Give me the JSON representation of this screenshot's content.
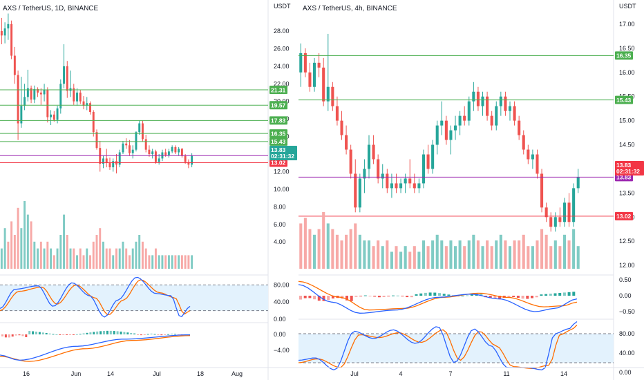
{
  "colors": {
    "up": "#26a69a",
    "down": "#ef5350",
    "up_vol": "#80cbc4",
    "down_vol": "#f7a9a7",
    "level_green": "#4caf50",
    "level_red": "#f23645",
    "last_price": "#9c27b0",
    "osc_fill": "#e3f2fd",
    "line_blue": "#2962ff",
    "line_orange": "#ff6d00",
    "grid": "#f0f3fa"
  },
  "chart_data": [
    {
      "type": "candlestick",
      "title": "AXS / TetherUS, 1D, BINANCE",
      "currency": "USDT",
      "x_ticks": [
        "16",
        "Jun",
        "14",
        "Jul",
        "18",
        "Aug"
      ],
      "y_ticks": [
        "28.00",
        "26.00",
        "24.00",
        "22.00",
        "20.00",
        "18.00",
        "16.00",
        "14.00",
        "12.00",
        "10.00",
        "8.00",
        "6.00",
        "4.00"
      ],
      "ylim": [
        1.5,
        30.2
      ],
      "levels": [
        21.31,
        19.57,
        17.83,
        16.35,
        15.43,
        13.02
      ],
      "level_labels": [
        "21.31",
        "19.57",
        "17.83",
        "16.35",
        "15.43",
        "13.02"
      ],
      "current_price": "13.83",
      "countdown": "02:31:32",
      "candles": [
        [
          28.0,
          29.5,
          26.5,
          27.5
        ],
        [
          27.5,
          29.0,
          26.6,
          28.3
        ],
        [
          28.3,
          30.0,
          27.0,
          28.8
        ],
        [
          28.8,
          29.2,
          24.8,
          25.2
        ],
        [
          25.2,
          26.2,
          22.0,
          23.0
        ],
        [
          23.0,
          23.5,
          15.6,
          17.5
        ],
        [
          17.5,
          22.8,
          17.0,
          19.5
        ],
        [
          19.5,
          22.0,
          19.0,
          20.5
        ],
        [
          20.5,
          23.6,
          20.0,
          21.5
        ],
        [
          21.5,
          21.8,
          19.8,
          20.2
        ],
        [
          20.2,
          21.8,
          19.8,
          21.4
        ],
        [
          21.4,
          21.6,
          20.5,
          21.0
        ],
        [
          21.0,
          21.5,
          19.6,
          20.8
        ],
        [
          20.8,
          22.0,
          20.0,
          21.3
        ],
        [
          21.3,
          21.6,
          17.6,
          18.2
        ],
        [
          18.2,
          19.0,
          17.3,
          18.5
        ],
        [
          18.5,
          18.9,
          17.7,
          17.9
        ],
        [
          17.9,
          19.5,
          17.5,
          19.2
        ],
        [
          19.2,
          22.5,
          18.6,
          22.0
        ],
        [
          22.0,
          26.5,
          21.5,
          24.0
        ],
        [
          24.0,
          24.6,
          20.4,
          21.2
        ],
        [
          21.2,
          23.5,
          20.5,
          21.5
        ],
        [
          21.5,
          22.0,
          19.6,
          20.0
        ],
        [
          20.0,
          21.5,
          19.5,
          21.0
        ],
        [
          21.0,
          21.3,
          19.7,
          20.0
        ],
        [
          20.0,
          20.6,
          19.1,
          19.5
        ],
        [
          19.5,
          20.5,
          19.0,
          19.8
        ],
        [
          19.8,
          20.0,
          18.5,
          18.8
        ],
        [
          18.8,
          19.0,
          16.0,
          16.5
        ],
        [
          16.5,
          16.8,
          14.5,
          14.7
        ],
        [
          14.7,
          15.5,
          12.0,
          12.9
        ],
        [
          12.9,
          13.8,
          12.4,
          13.5
        ],
        [
          13.5,
          14.6,
          12.5,
          13.0
        ],
        [
          13.0,
          13.6,
          12.2,
          12.5
        ],
        [
          12.5,
          13.5,
          12.0,
          13.2
        ],
        [
          13.2,
          14.0,
          11.8,
          12.8
        ],
        [
          12.8,
          14.5,
          12.5,
          14.2
        ],
        [
          14.2,
          15.5,
          14.0,
          15.2
        ],
        [
          15.2,
          15.8,
          14.6,
          15.0
        ],
        [
          15.0,
          15.6,
          13.8,
          14.1
        ],
        [
          14.1,
          15.0,
          13.5,
          14.5
        ],
        [
          14.5,
          16.6,
          14.3,
          16.5
        ],
        [
          16.5,
          17.8,
          16.2,
          17.5
        ],
        [
          17.5,
          17.8,
          15.4,
          15.7
        ],
        [
          15.7,
          16.2,
          14.2,
          14.5
        ],
        [
          14.5,
          15.0,
          13.7,
          14.0
        ],
        [
          14.0,
          14.6,
          13.5,
          14.3
        ],
        [
          14.3,
          14.5,
          12.9,
          13.1
        ],
        [
          13.1,
          14.0,
          12.8,
          13.5
        ],
        [
          13.5,
          14.5,
          13.2,
          14.2
        ],
        [
          14.2,
          14.6,
          13.7,
          13.9
        ],
        [
          13.9,
          14.6,
          13.6,
          14.3
        ],
        [
          14.3,
          15.0,
          14.1,
          14.8
        ],
        [
          14.8,
          15.0,
          14.0,
          14.2
        ],
        [
          14.2,
          14.8,
          13.8,
          14.6
        ],
        [
          14.6,
          14.7,
          13.6,
          13.8
        ],
        [
          13.8,
          14.0,
          12.9,
          13.1
        ],
        [
          13.1,
          13.4,
          12.4,
          12.8
        ],
        [
          12.8,
          14.1,
          12.5,
          13.83
        ]
      ],
      "volume": [
        [
          3,
          "u"
        ],
        [
          6,
          "u"
        ],
        [
          4,
          "d"
        ],
        [
          7,
          "d"
        ],
        [
          5,
          "d"
        ],
        [
          9,
          "d"
        ],
        [
          6,
          "u"
        ],
        [
          10,
          "u"
        ],
        [
          8,
          "u"
        ],
        [
          7,
          "d"
        ],
        [
          4,
          "u"
        ],
        [
          3,
          "u"
        ],
        [
          4,
          "d"
        ],
        [
          3,
          "u"
        ],
        [
          4,
          "d"
        ],
        [
          3,
          "u"
        ],
        [
          2,
          "d"
        ],
        [
          3,
          "u"
        ],
        [
          5,
          "u"
        ],
        [
          8,
          "u"
        ],
        [
          5,
          "d"
        ],
        [
          3,
          "u"
        ],
        [
          3,
          "d"
        ],
        [
          2,
          "u"
        ],
        [
          3,
          "d"
        ],
        [
          2,
          "d"
        ],
        [
          3,
          "u"
        ],
        [
          2,
          "d"
        ],
        [
          4,
          "d"
        ],
        [
          5,
          "d"
        ],
        [
          6,
          "d"
        ],
        [
          4,
          "u"
        ],
        [
          3,
          "d"
        ],
        [
          3,
          "d"
        ],
        [
          2,
          "u"
        ],
        [
          3,
          "d"
        ],
        [
          3,
          "u"
        ],
        [
          4,
          "u"
        ],
        [
          3,
          "d"
        ],
        [
          2,
          "d"
        ],
        [
          3,
          "u"
        ],
        [
          4,
          "u"
        ],
        [
          5,
          "u"
        ],
        [
          4,
          "d"
        ],
        [
          3,
          "d"
        ],
        [
          2,
          "d"
        ],
        [
          2,
          "u"
        ],
        [
          3,
          "d"
        ],
        [
          2,
          "u"
        ],
        [
          2,
          "u"
        ],
        [
          2,
          "d"
        ],
        [
          2,
          "u"
        ],
        [
          2,
          "u"
        ],
        [
          2,
          "d"
        ],
        [
          2,
          "u"
        ],
        [
          2,
          "d"
        ],
        [
          2,
          "d"
        ],
        [
          2,
          "d"
        ],
        [
          2,
          "u"
        ]
      ],
      "stoch_ticks": [
        "80.00",
        "40.00",
        "0.00"
      ],
      "stoch_bands": [
        80,
        20
      ],
      "macd_ticks": [
        "0.00",
        "−4.00"
      ]
    },
    {
      "type": "candlestick",
      "title": "AXS / TetherUS, 4h, BINANCE",
      "currency": "USDT",
      "x_ticks": [
        "Jul",
        "4",
        "7",
        "11",
        "14"
      ],
      "y_ticks": [
        "17.00",
        "16.50",
        "16.00",
        "15.50",
        "15.00",
        "14.50",
        "14.00",
        "13.50",
        "13.00",
        "12.50",
        "12.00"
      ],
      "ylim": [
        11.93,
        17.1
      ],
      "levels": [
        16.35,
        15.43,
        13.02
      ],
      "level_labels": [
        "16.35",
        "15.43",
        "13.02"
      ],
      "current_price": "13.83",
      "countdown": "02:31:32",
      "candles": [
        [
          16.0,
          16.6,
          15.7,
          16.4
        ],
        [
          16.4,
          16.5,
          15.9,
          16.0
        ],
        [
          16.0,
          16.2,
          15.6,
          15.7
        ],
        [
          15.7,
          16.3,
          15.6,
          16.2
        ],
        [
          16.2,
          16.4,
          15.9,
          16.1
        ],
        [
          16.1,
          16.3,
          15.3,
          15.4
        ],
        [
          15.4,
          16.8,
          15.2,
          15.7
        ],
        [
          15.7,
          15.8,
          15.2,
          15.3
        ],
        [
          15.3,
          15.5,
          14.9,
          15.0
        ],
        [
          15.0,
          15.2,
          14.6,
          14.7
        ],
        [
          14.7,
          14.9,
          14.3,
          14.4
        ],
        [
          14.4,
          14.5,
          13.8,
          13.9
        ],
        [
          13.9,
          14.2,
          13.1,
          13.2
        ],
        [
          13.2,
          13.9,
          13.1,
          13.8
        ],
        [
          13.8,
          14.2,
          13.5,
          14.0
        ],
        [
          14.0,
          14.7,
          13.8,
          14.5
        ],
        [
          14.5,
          14.7,
          14.1,
          14.2
        ],
        [
          14.2,
          14.3,
          13.7,
          13.8
        ],
        [
          13.8,
          14.1,
          13.6,
          13.9
        ],
        [
          13.9,
          14.0,
          13.5,
          13.6
        ],
        [
          13.6,
          13.9,
          13.4,
          13.7
        ],
        [
          13.7,
          13.9,
          13.5,
          13.6
        ],
        [
          13.6,
          13.8,
          13.5,
          13.7
        ],
        [
          13.7,
          13.9,
          13.5,
          13.8
        ],
        [
          13.8,
          14.2,
          13.6,
          13.7
        ],
        [
          13.7,
          13.9,
          13.5,
          13.6
        ],
        [
          13.6,
          13.8,
          13.5,
          13.7
        ],
        [
          13.7,
          14.4,
          13.6,
          14.3
        ],
        [
          14.3,
          14.5,
          13.9,
          14.0
        ],
        [
          14.0,
          14.6,
          13.9,
          14.5
        ],
        [
          14.5,
          15.0,
          14.3,
          14.9
        ],
        [
          14.9,
          15.4,
          14.7,
          15.0
        ],
        [
          15.0,
          15.1,
          14.5,
          14.6
        ],
        [
          14.6,
          14.9,
          14.3,
          14.8
        ],
        [
          14.8,
          15.1,
          14.6,
          14.9
        ],
        [
          14.9,
          15.2,
          14.7,
          15.1
        ],
        [
          15.1,
          15.3,
          14.9,
          15.0
        ],
        [
          15.0,
          15.5,
          14.9,
          15.4
        ],
        [
          15.4,
          15.8,
          15.2,
          15.6
        ],
        [
          15.6,
          15.7,
          15.2,
          15.3
        ],
        [
          15.3,
          15.6,
          15.1,
          15.5
        ],
        [
          15.5,
          15.6,
          15.0,
          15.1
        ],
        [
          15.1,
          15.2,
          14.8,
          14.9
        ],
        [
          14.9,
          15.4,
          14.8,
          15.3
        ],
        [
          15.3,
          15.6,
          15.1,
          15.5
        ],
        [
          15.5,
          15.6,
          15.1,
          15.2
        ],
        [
          15.2,
          15.4,
          15.0,
          15.3
        ],
        [
          15.3,
          15.4,
          14.9,
          15.0
        ],
        [
          15.0,
          15.1,
          14.6,
          14.7
        ],
        [
          14.7,
          14.8,
          14.3,
          14.4
        ],
        [
          14.4,
          14.5,
          14.1,
          14.2
        ],
        [
          14.2,
          14.4,
          14.0,
          14.3
        ],
        [
          14.3,
          14.4,
          13.8,
          13.9
        ],
        [
          13.9,
          14.0,
          13.1,
          13.2
        ],
        [
          13.2,
          13.3,
          12.9,
          13.0
        ],
        [
          13.0,
          13.1,
          12.7,
          12.8
        ],
        [
          12.8,
          13.1,
          12.7,
          13.0
        ],
        [
          13.0,
          13.2,
          12.8,
          12.9
        ],
        [
          12.9,
          13.4,
          12.8,
          13.3
        ],
        [
          13.3,
          13.5,
          12.8,
          12.9
        ],
        [
          12.9,
          13.7,
          12.8,
          13.6
        ],
        [
          13.6,
          14.0,
          13.5,
          13.83
        ]
      ],
      "volume": [
        [
          8,
          "d"
        ],
        [
          9,
          "d"
        ],
        [
          7,
          "d"
        ],
        [
          6,
          "u"
        ],
        [
          7,
          "d"
        ],
        [
          10,
          "d"
        ],
        [
          8,
          "u"
        ],
        [
          7,
          "d"
        ],
        [
          6,
          "d"
        ],
        [
          5,
          "d"
        ],
        [
          6,
          "d"
        ],
        [
          7,
          "d"
        ],
        [
          8,
          "d"
        ],
        [
          6,
          "u"
        ],
        [
          5,
          "u"
        ],
        [
          5,
          "u"
        ],
        [
          4,
          "d"
        ],
        [
          5,
          "d"
        ],
        [
          4,
          "u"
        ],
        [
          5,
          "d"
        ],
        [
          3,
          "u"
        ],
        [
          4,
          "d"
        ],
        [
          3,
          "u"
        ],
        [
          4,
          "u"
        ],
        [
          3,
          "d"
        ],
        [
          4,
          "d"
        ],
        [
          3,
          "u"
        ],
        [
          5,
          "u"
        ],
        [
          4,
          "d"
        ],
        [
          5,
          "u"
        ],
        [
          6,
          "u"
        ],
        [
          5,
          "u"
        ],
        [
          4,
          "d"
        ],
        [
          5,
          "u"
        ],
        [
          4,
          "u"
        ],
        [
          5,
          "u"
        ],
        [
          4,
          "d"
        ],
        [
          5,
          "u"
        ],
        [
          6,
          "u"
        ],
        [
          5,
          "d"
        ],
        [
          4,
          "u"
        ],
        [
          5,
          "d"
        ],
        [
          4,
          "d"
        ],
        [
          5,
          "u"
        ],
        [
          6,
          "u"
        ],
        [
          5,
          "d"
        ],
        [
          4,
          "u"
        ],
        [
          5,
          "d"
        ],
        [
          5,
          "d"
        ],
        [
          6,
          "d"
        ],
        [
          4,
          "d"
        ],
        [
          4,
          "u"
        ],
        [
          5,
          "d"
        ],
        [
          7,
          "d"
        ],
        [
          6,
          "d"
        ],
        [
          4,
          "d"
        ],
        [
          5,
          "u"
        ],
        [
          4,
          "d"
        ],
        [
          6,
          "u"
        ],
        [
          5,
          "d"
        ],
        [
          7,
          "u"
        ],
        [
          4,
          "u"
        ]
      ],
      "macd_ticks": [
        "0.50",
        "0.00",
        "−0.50"
      ],
      "stoch_ticks": [
        "80.00",
        "40.00",
        "0.00"
      ],
      "stoch_bands": [
        80,
        20
      ]
    }
  ]
}
